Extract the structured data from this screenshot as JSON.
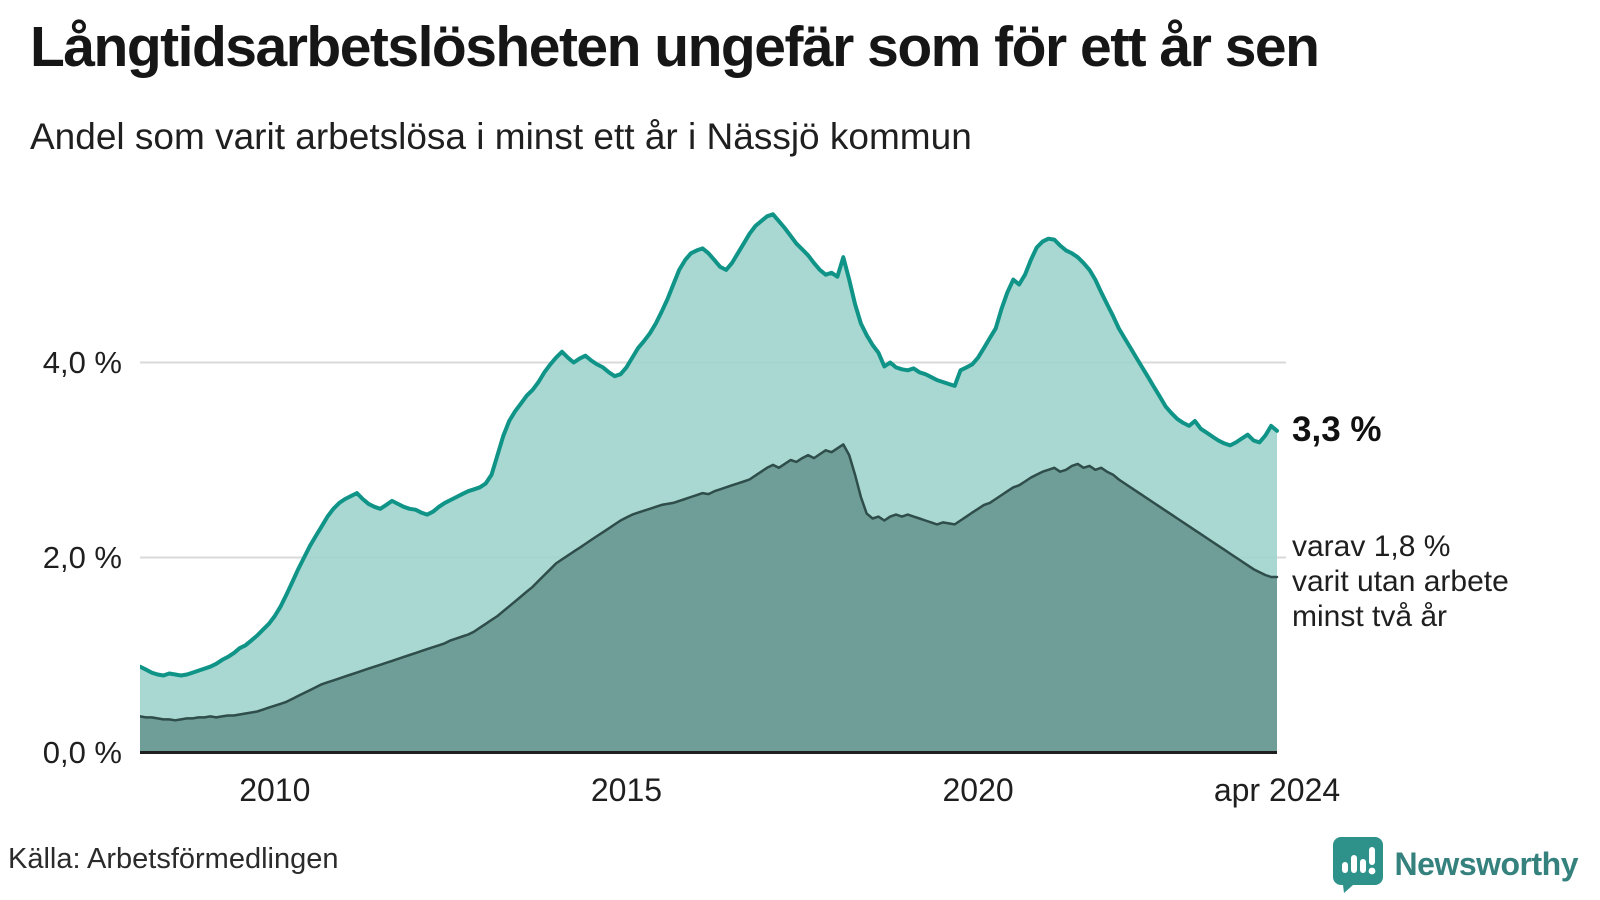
{
  "header": {
    "title": "Långtidsarbetslösheten ungefär som för ett år sen",
    "subtitle": "Andel som varit arbetslösa i minst ett år i Nässjö kommun"
  },
  "annotations": {
    "latest_total_label": "3,3 %",
    "note_lines": [
      "varav 1,8 %",
      "varit utan arbete",
      "minst två år"
    ]
  },
  "footer": {
    "source": "Källa: Arbetsförmedlingen",
    "brand": "Newsworthy"
  },
  "colors": {
    "outer_fill": "#9fd4cc",
    "outer_line": "#109488",
    "inner_fill": "#6f9e98",
    "inner_line": "#2f4d4a",
    "gridline": "#d9d9d9",
    "axis_line": "#1f1f1f",
    "brand_teal": "#2e928b"
  },
  "chart_data": {
    "type": "area",
    "title": "Långtidsarbetslösheten ungefär som för ett år sen",
    "subtitle": "Andel som varit arbetslösa i minst ett år i Nässjö kommun",
    "unit": "%",
    "frequency": "monthly",
    "x_start": "2008-02",
    "x_end": "2024-04",
    "ylim": [
      0,
      5.75
    ],
    "grid": "horizontal",
    "legend_position": "none",
    "y_ticks": [
      {
        "label": "0,0 %",
        "value": 0
      },
      {
        "label": "2,0 %",
        "value": 2
      },
      {
        "label": "4,0 %",
        "value": 4
      }
    ],
    "x_ticks": [
      {
        "label": "2010",
        "t": 2010
      },
      {
        "label": "2015",
        "t": 2015
      },
      {
        "label": "2020",
        "t": 2020
      },
      {
        "label": "apr 2024",
        "t": 2024.25
      }
    ],
    "series": [
      {
        "name": "Arbetslösa minst ett år",
        "latest_value": 3.3,
        "latest_label": "3,3 %",
        "fill": "#9fd4cc",
        "line": "#109488",
        "line_width": 4,
        "values": [
          0.88,
          0.85,
          0.82,
          0.8,
          0.79,
          0.81,
          0.8,
          0.79,
          0.8,
          0.82,
          0.84,
          0.86,
          0.88,
          0.91,
          0.95,
          0.98,
          1.02,
          1.07,
          1.1,
          1.15,
          1.2,
          1.26,
          1.32,
          1.4,
          1.5,
          1.62,
          1.75,
          1.88,
          2.0,
          2.12,
          2.22,
          2.32,
          2.42,
          2.5,
          2.56,
          2.6,
          2.63,
          2.66,
          2.6,
          2.55,
          2.52,
          2.5,
          2.54,
          2.58,
          2.55,
          2.52,
          2.5,
          2.49,
          2.46,
          2.44,
          2.47,
          2.52,
          2.56,
          2.59,
          2.62,
          2.65,
          2.68,
          2.7,
          2.72,
          2.76,
          2.85,
          3.05,
          3.25,
          3.4,
          3.5,
          3.58,
          3.66,
          3.72,
          3.8,
          3.9,
          3.98,
          4.05,
          4.11,
          4.05,
          4.0,
          4.04,
          4.07,
          4.02,
          3.98,
          3.95,
          3.9,
          3.86,
          3.88,
          3.95,
          4.05,
          4.15,
          4.22,
          4.3,
          4.4,
          4.52,
          4.65,
          4.8,
          4.95,
          5.05,
          5.12,
          5.15,
          5.17,
          5.12,
          5.05,
          4.98,
          4.95,
          5.02,
          5.12,
          5.22,
          5.32,
          5.4,
          5.45,
          5.5,
          5.52,
          5.45,
          5.38,
          5.3,
          5.22,
          5.16,
          5.1,
          5.02,
          4.95,
          4.9,
          4.92,
          4.88,
          5.08,
          4.85,
          4.6,
          4.4,
          4.28,
          4.18,
          4.1,
          3.96,
          4.0,
          3.95,
          3.93,
          3.92,
          3.94,
          3.9,
          3.88,
          3.85,
          3.82,
          3.8,
          3.78,
          3.76,
          3.92,
          3.95,
          3.98,
          4.05,
          4.15,
          4.25,
          4.35,
          4.55,
          4.72,
          4.85,
          4.8,
          4.9,
          5.05,
          5.18,
          5.24,
          5.27,
          5.26,
          5.2,
          5.15,
          5.12,
          5.08,
          5.02,
          4.95,
          4.85,
          4.72,
          4.6,
          4.48,
          4.35,
          4.25,
          4.15,
          4.05,
          3.95,
          3.85,
          3.75,
          3.65,
          3.55,
          3.48,
          3.42,
          3.38,
          3.35,
          3.4,
          3.32,
          3.28,
          3.24,
          3.2,
          3.17,
          3.15,
          3.18,
          3.22,
          3.26,
          3.2,
          3.18,
          3.25,
          3.35,
          3.3
        ]
      },
      {
        "name": "Arbetslösa minst två år",
        "latest_value": 1.8,
        "latest_label": "1,8 %",
        "fill": "#6f9e98",
        "line": "#2f4d4a",
        "line_width": 2.5,
        "values": [
          0.37,
          0.36,
          0.36,
          0.35,
          0.34,
          0.34,
          0.33,
          0.34,
          0.35,
          0.35,
          0.36,
          0.36,
          0.37,
          0.36,
          0.37,
          0.38,
          0.38,
          0.39,
          0.4,
          0.41,
          0.42,
          0.44,
          0.46,
          0.48,
          0.5,
          0.52,
          0.55,
          0.58,
          0.61,
          0.64,
          0.67,
          0.7,
          0.72,
          0.74,
          0.76,
          0.78,
          0.8,
          0.82,
          0.84,
          0.86,
          0.88,
          0.9,
          0.92,
          0.94,
          0.96,
          0.98,
          1.0,
          1.02,
          1.04,
          1.06,
          1.08,
          1.1,
          1.12,
          1.15,
          1.17,
          1.19,
          1.21,
          1.24,
          1.28,
          1.32,
          1.36,
          1.4,
          1.45,
          1.5,
          1.55,
          1.6,
          1.65,
          1.7,
          1.76,
          1.82,
          1.88,
          1.94,
          1.98,
          2.02,
          2.06,
          2.1,
          2.14,
          2.18,
          2.22,
          2.26,
          2.3,
          2.34,
          2.38,
          2.41,
          2.44,
          2.46,
          2.48,
          2.5,
          2.52,
          2.54,
          2.55,
          2.56,
          2.58,
          2.6,
          2.62,
          2.64,
          2.66,
          2.65,
          2.68,
          2.7,
          2.72,
          2.74,
          2.76,
          2.78,
          2.8,
          2.84,
          2.88,
          2.92,
          2.95,
          2.92,
          2.96,
          3.0,
          2.98,
          3.02,
          3.05,
          3.02,
          3.06,
          3.1,
          3.08,
          3.12,
          3.16,
          3.05,
          2.85,
          2.62,
          2.45,
          2.4,
          2.42,
          2.38,
          2.42,
          2.44,
          2.42,
          2.44,
          2.42,
          2.4,
          2.38,
          2.36,
          2.34,
          2.36,
          2.35,
          2.34,
          2.38,
          2.42,
          2.46,
          2.5,
          2.54,
          2.56,
          2.6,
          2.64,
          2.68,
          2.72,
          2.74,
          2.78,
          2.82,
          2.85,
          2.88,
          2.9,
          2.92,
          2.88,
          2.9,
          2.94,
          2.96,
          2.92,
          2.94,
          2.9,
          2.92,
          2.88,
          2.85,
          2.8,
          2.76,
          2.72,
          2.68,
          2.64,
          2.6,
          2.56,
          2.52,
          2.48,
          2.44,
          2.4,
          2.36,
          2.32,
          2.28,
          2.24,
          2.2,
          2.16,
          2.12,
          2.08,
          2.04,
          2.0,
          1.96,
          1.92,
          1.88,
          1.85,
          1.82,
          1.8,
          1.8
        ]
      }
    ]
  }
}
